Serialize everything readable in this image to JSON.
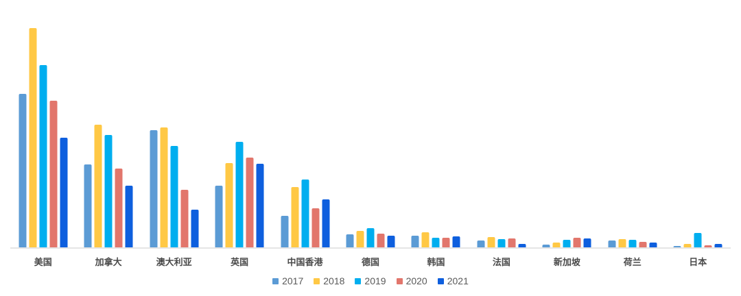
{
  "chart_data": {
    "type": "bar",
    "title": "",
    "xlabel": "",
    "ylabel": "",
    "categories": [
      "美国",
      "加拿大",
      "澳大利亚",
      "英国",
      "中国香港",
      "德国",
      "韩国",
      "法国",
      "新加坡",
      "荷兰",
      "日本"
    ],
    "series": [
      {
        "name": "2017",
        "color": "#5B9BD5",
        "values": [
          225,
          122,
          172,
          91,
          47,
          20,
          18,
          11,
          5,
          11,
          3
        ]
      },
      {
        "name": "2018",
        "color": "#FFC845",
        "values": [
          321,
          180,
          176,
          124,
          89,
          25,
          23,
          16,
          8,
          13,
          6
        ]
      },
      {
        "name": "2019",
        "color": "#00AEEF",
        "values": [
          267,
          165,
          149,
          155,
          100,
          29,
          15,
          13,
          12,
          12,
          22
        ]
      },
      {
        "name": "2020",
        "color": "#E2766C",
        "values": [
          215,
          116,
          85,
          132,
          58,
          21,
          15,
          14,
          15,
          9,
          4
        ]
      },
      {
        "name": "2021",
        "color": "#0E5FDE",
        "values": [
          161,
          91,
          56,
          123,
          71,
          18,
          17,
          6,
          14,
          8,
          6
        ]
      }
    ],
    "ylim": [
      0,
      332
    ],
    "grid": false,
    "y_axis_visible": false,
    "legend_position": "bottom",
    "colors": {
      "axis_line": "#E5E5E5",
      "category_label": "#4A4A4A",
      "legend_text": "#595959",
      "background": "#FFFFFF"
    }
  }
}
